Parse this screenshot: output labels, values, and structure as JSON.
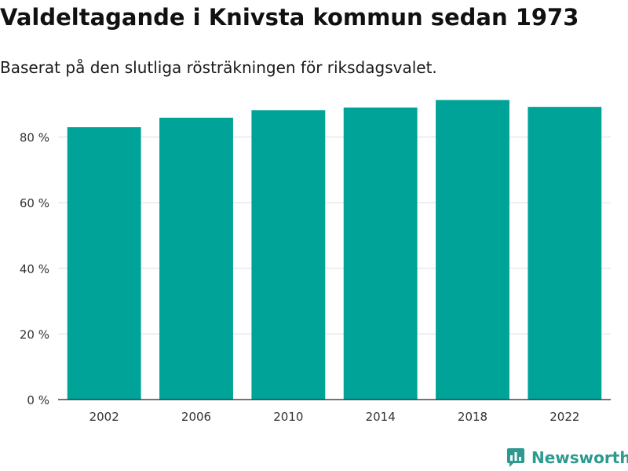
{
  "chart_data": {
    "type": "bar",
    "title": "Valdeltagande i Knivsta kommun sedan 1973",
    "subtitle": "Baserat på den slutliga rösträkningen för riksdagsvalet.",
    "categories": [
      "2002",
      "2006",
      "2010",
      "2014",
      "2018",
      "2022"
    ],
    "values": [
      83.0,
      85.9,
      88.2,
      89.0,
      91.3,
      89.2
    ],
    "ylim": [
      0,
      100
    ],
    "yticks": [
      0,
      20,
      40,
      60,
      80
    ],
    "ytick_labels": [
      "0 %",
      "20 %",
      "40 %",
      "60 %",
      "80 %"
    ],
    "xlabel": "",
    "ylabel": "",
    "grid": true,
    "bar_color": "#00a398"
  },
  "brand": {
    "name": "Newsworthy",
    "color": "#2d9a8f"
  }
}
